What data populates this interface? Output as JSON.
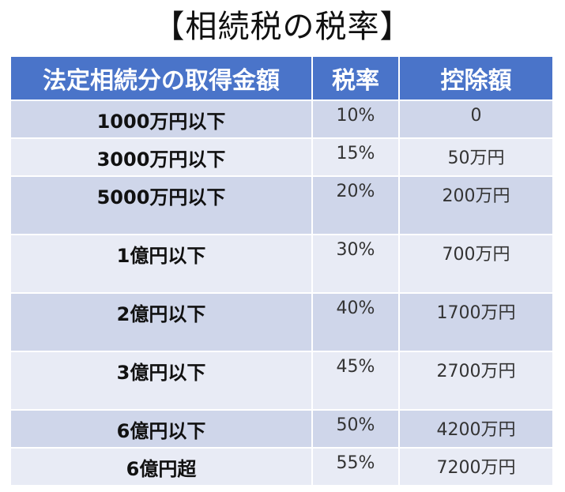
{
  "title": "【相続税の税率】",
  "table": {
    "headers": [
      "法定相続分の取得金額",
      "税率",
      "控除額"
    ],
    "rows": [
      {
        "amount": "1000万円以下",
        "rate": "10%",
        "deduction": "0"
      },
      {
        "amount": "3000万円以下",
        "rate": "15%",
        "deduction": "50万円"
      },
      {
        "amount": "5000万円以下",
        "rate": "20%",
        "deduction": "200万円"
      },
      {
        "amount": "1億円以下",
        "rate": "30%",
        "deduction": "700万円"
      },
      {
        "amount": "2億円以下",
        "rate": "40%",
        "deduction": "1700万円"
      },
      {
        "amount": "3億円以下",
        "rate": "45%",
        "deduction": "2700万円"
      },
      {
        "amount": "6億円以下",
        "rate": "50%",
        "deduction": "4200万円"
      },
      {
        "amount": "6億円超",
        "rate": "55%",
        "deduction": "7200万円"
      }
    ]
  },
  "colors": {
    "header_bg": "#4a74c9",
    "row_dark": "#cfd6ea",
    "row_light": "#e8ebf5"
  }
}
